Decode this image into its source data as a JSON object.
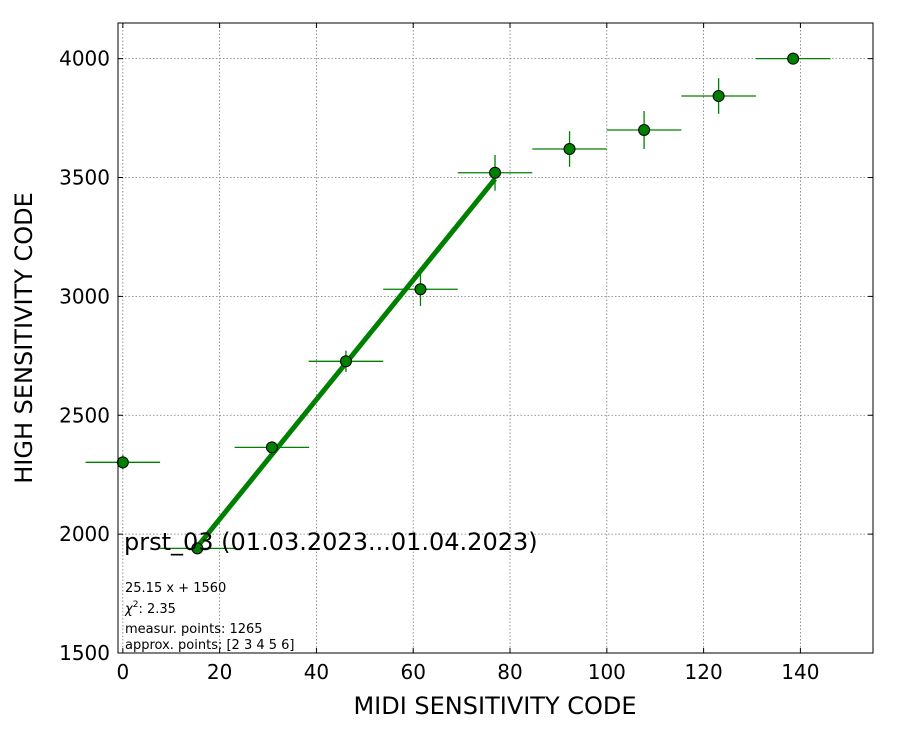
{
  "chart_data": {
    "type": "scatter",
    "xlabel": "MIDI SENSITIVITY CODE",
    "ylabel": "HIGH SENSITIVITY CODE",
    "xlim": [
      -1,
      155
    ],
    "ylim": [
      1500,
      4150
    ],
    "xticks": [
      0,
      20,
      40,
      60,
      80,
      100,
      120,
      140
    ],
    "yticks": [
      1500,
      2000,
      2500,
      3000,
      3500,
      4000
    ],
    "grid": true,
    "color": "#008000",
    "marker_edge_color": "#000000",
    "points": [
      {
        "x": 0,
        "y": 2302,
        "xerr": 7.7,
        "yerr": 30
      },
      {
        "x": 15.4,
        "y": 1940,
        "xerr": 7.7,
        "yerr": 20
      },
      {
        "x": 30.8,
        "y": 2365,
        "xerr": 7.7,
        "yerr": 25
      },
      {
        "x": 46.1,
        "y": 2727,
        "xerr": 7.7,
        "yerr": 45
      },
      {
        "x": 61.5,
        "y": 3030,
        "xerr": 7.7,
        "yerr": 70
      },
      {
        "x": 76.9,
        "y": 3520,
        "xerr": 7.7,
        "yerr": 75
      },
      {
        "x": 92.3,
        "y": 3620,
        "xerr": 7.7,
        "yerr": 75
      },
      {
        "x": 107.7,
        "y": 3700,
        "xerr": 7.7,
        "yerr": 80
      },
      {
        "x": 123.1,
        "y": 3843,
        "xerr": 7.7,
        "yerr": 75
      },
      {
        "x": 138.5,
        "y": 4000,
        "xerr": 7.7,
        "yerr": 25
      }
    ],
    "fit": {
      "slope": 25.15,
      "intercept": 1560,
      "x_range": [
        15.4,
        76.9
      ]
    },
    "annotation": {
      "title": "prst_03 (01.03.2023...01.04.2023)",
      "formula": "25.15 x + 1560",
      "chi2_label": "χ",
      "chi2_sup": "2",
      "chi2_value": ": 2.35",
      "measur_points": "measur. points: 1265",
      "approx_points": "approx. points: [2 3 4 5 6]"
    }
  }
}
